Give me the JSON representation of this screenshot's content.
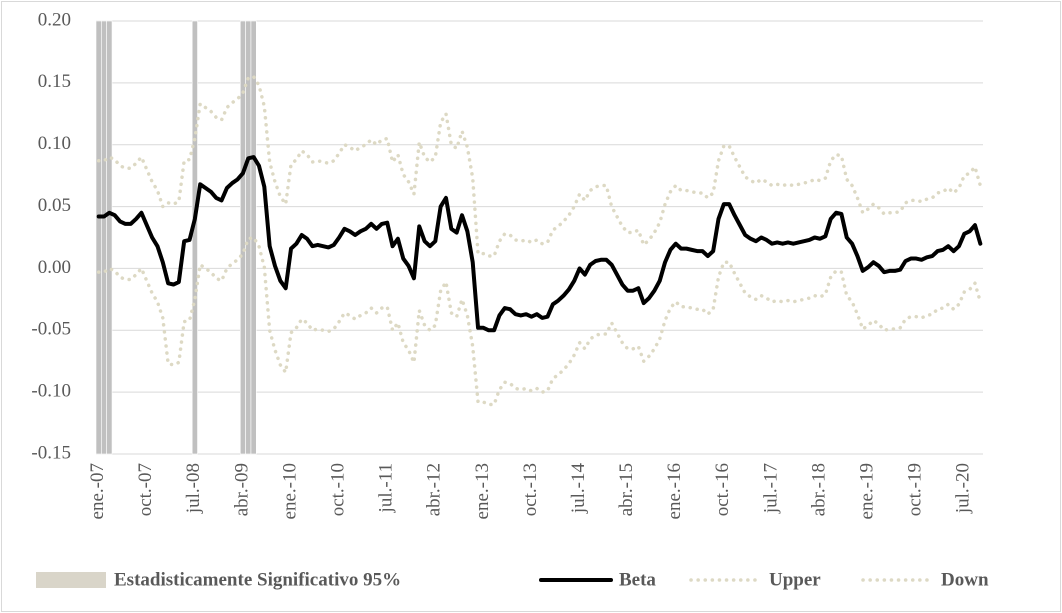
{
  "chart_data": {
    "type": "line",
    "categories": [
      "ene.-07",
      null,
      null,
      null,
      null,
      null,
      null,
      null,
      null,
      "oct.-07",
      null,
      null,
      null,
      null,
      null,
      null,
      null,
      null,
      "jul.-08",
      null,
      null,
      null,
      null,
      null,
      null,
      null,
      null,
      "abr.-09",
      null,
      null,
      null,
      null,
      null,
      null,
      null,
      null,
      "ene.-10",
      null,
      null,
      null,
      null,
      null,
      null,
      null,
      null,
      "oct.-10",
      null,
      null,
      null,
      null,
      null,
      null,
      null,
      null,
      "jul.-11",
      null,
      null,
      null,
      null,
      null,
      null,
      null,
      null,
      "abr.-12",
      null,
      null,
      null,
      null,
      null,
      null,
      null,
      null,
      "ene.-13",
      null,
      null,
      null,
      null,
      null,
      null,
      null,
      null,
      "oct.-13",
      null,
      null,
      null,
      null,
      null,
      null,
      null,
      null,
      "jul.-14",
      null,
      null,
      null,
      null,
      null,
      null,
      null,
      null,
      "abr.-15",
      null,
      null,
      null,
      null,
      null,
      null,
      null,
      null,
      "ene.-16",
      null,
      null,
      null,
      null,
      null,
      null,
      null,
      null,
      "oct.-16",
      null,
      null,
      null,
      null,
      null,
      null,
      null,
      null,
      "jul.-17",
      null,
      null,
      null,
      null,
      null,
      null,
      null,
      null,
      "abr.-18",
      null,
      null,
      null,
      null,
      null,
      null,
      null,
      null,
      "ene.-19",
      null,
      null,
      null,
      null,
      null,
      null,
      null,
      null,
      "oct.-19",
      null,
      null,
      null,
      null,
      null,
      null,
      null,
      null,
      "jul.-20",
      null,
      null,
      null
    ],
    "series": [
      {
        "name": "Estadisticamente Significativo 95%",
        "type": "bar",
        "axis": "y2",
        "color": "#c0c0c0",
        "legend_color": "#d9d5c9",
        "values": [
          1,
          1,
          1,
          null,
          null,
          null,
          null,
          null,
          null,
          null,
          null,
          null,
          null,
          null,
          null,
          null,
          null,
          null,
          1,
          null,
          null,
          null,
          null,
          null,
          null,
          null,
          null,
          1,
          1,
          1,
          null,
          null,
          null,
          null,
          null,
          null,
          null,
          null,
          null,
          null,
          null,
          null,
          null,
          null,
          null,
          null,
          null,
          null,
          null,
          null,
          null,
          null,
          null,
          null,
          null,
          null,
          null,
          null,
          null,
          null,
          null,
          null,
          null,
          null,
          null,
          null,
          null,
          null,
          null,
          null,
          null,
          null,
          null,
          null,
          null,
          null,
          null,
          null,
          null,
          null,
          null,
          null,
          null,
          null,
          null,
          null,
          null,
          null,
          null,
          null,
          null,
          null,
          null,
          null,
          null,
          null,
          null,
          null,
          null,
          null,
          null,
          null,
          null,
          null,
          null,
          null,
          null,
          null,
          null,
          null,
          null,
          null,
          null,
          null,
          null,
          null,
          null,
          null,
          null,
          null,
          null,
          null,
          null,
          null,
          null,
          null,
          null,
          null,
          null,
          null,
          null,
          null,
          null,
          null,
          null,
          null,
          null,
          null,
          null,
          null,
          null,
          null,
          null,
          null,
          null,
          null,
          null,
          null,
          null,
          null,
          null,
          null,
          null,
          null,
          null,
          null,
          null,
          null,
          null,
          null,
          null,
          null,
          null,
          null,
          null,
          null
        ]
      },
      {
        "name": "Beta",
        "type": "line",
        "color": "#000000",
        "style": "solid",
        "values": [
          0.042,
          0.042,
          0.045,
          0.043,
          0.038,
          0.036,
          0.036,
          0.04,
          0.045,
          0.035,
          0.025,
          0.018,
          0.005,
          -0.012,
          -0.013,
          -0.011,
          0.022,
          0.023,
          0.04,
          0.068,
          0.065,
          0.062,
          0.057,
          0.055,
          0.065,
          0.069,
          0.072,
          0.077,
          0.089,
          0.09,
          0.083,
          0.066,
          0.018,
          0.002,
          -0.01,
          -0.016,
          0.016,
          0.02,
          0.027,
          0.024,
          0.018,
          0.019,
          0.018,
          0.017,
          0.019,
          0.025,
          0.032,
          0.03,
          0.027,
          0.03,
          0.032,
          0.036,
          0.032,
          0.036,
          0.037,
          0.018,
          0.024,
          0.008,
          0.002,
          -0.008,
          0.034,
          0.022,
          0.018,
          0.022,
          0.05,
          0.057,
          0.032,
          0.029,
          0.043,
          0.03,
          0.005,
          -0.048,
          -0.048,
          -0.05,
          -0.05,
          -0.038,
          -0.032,
          -0.033,
          -0.037,
          -0.038,
          -0.037,
          -0.039,
          -0.037,
          -0.04,
          -0.039,
          -0.029,
          -0.026,
          -0.022,
          -0.017,
          -0.01,
          0.0,
          -0.005,
          0.003,
          0.006,
          0.007,
          0.007,
          0.003,
          -0.005,
          -0.013,
          -0.018,
          -0.018,
          -0.016,
          -0.028,
          -0.024,
          -0.018,
          -0.01,
          0.005,
          0.015,
          0.02,
          0.016,
          0.016,
          0.015,
          0.014,
          0.014,
          0.01,
          0.014,
          0.04,
          0.052,
          0.052,
          0.043,
          0.035,
          0.027,
          0.024,
          0.022,
          0.025,
          0.023,
          0.02,
          0.021,
          0.02,
          0.021,
          0.02,
          0.021,
          0.022,
          0.023,
          0.025,
          0.024,
          0.026,
          0.04,
          0.045,
          0.044,
          0.025,
          0.02,
          0.01,
          -0.002,
          0.001,
          0.005,
          0.002,
          -0.003,
          -0.002,
          -0.002,
          -0.001,
          0.006,
          0.008,
          0.008,
          0.007,
          0.009,
          0.01,
          0.014,
          0.015,
          0.018,
          0.014,
          0.018,
          0.028,
          0.03,
          0.035,
          0.02
        ]
      },
      {
        "name": "Upper",
        "type": "line",
        "color": "#ddd9c4",
        "style": "dotted",
        "values": [
          0.087,
          0.087,
          0.09,
          0.088,
          0.083,
          0.081,
          0.081,
          0.085,
          0.09,
          0.08,
          0.07,
          0.063,
          0.05,
          0.053,
          0.052,
          0.054,
          0.087,
          0.088,
          0.105,
          0.133,
          0.13,
          0.127,
          0.122,
          0.12,
          0.13,
          0.134,
          0.137,
          0.142,
          0.154,
          0.155,
          0.148,
          0.131,
          0.086,
          0.07,
          0.058,
          0.052,
          0.084,
          0.088,
          0.095,
          0.092,
          0.086,
          0.087,
          0.086,
          0.085,
          0.087,
          0.093,
          0.1,
          0.098,
          0.095,
          0.098,
          0.1,
          0.104,
          0.1,
          0.104,
          0.105,
          0.086,
          0.092,
          0.076,
          0.07,
          0.06,
          0.102,
          0.09,
          0.086,
          0.09,
          0.118,
          0.125,
          0.1,
          0.097,
          0.111,
          0.098,
          0.073,
          0.012,
          0.012,
          0.01,
          0.01,
          0.022,
          0.028,
          0.027,
          0.023,
          0.022,
          0.023,
          0.021,
          0.023,
          0.02,
          0.021,
          0.031,
          0.034,
          0.038,
          0.043,
          0.05,
          0.06,
          0.055,
          0.063,
          0.066,
          0.067,
          0.067,
          0.05,
          0.042,
          0.034,
          0.029,
          0.029,
          0.031,
          0.019,
          0.023,
          0.029,
          0.037,
          0.052,
          0.062,
          0.067,
          0.063,
          0.063,
          0.062,
          0.061,
          0.061,
          0.057,
          0.061,
          0.087,
          0.099,
          0.099,
          0.09,
          0.082,
          0.074,
          0.071,
          0.069,
          0.072,
          0.07,
          0.067,
          0.068,
          0.067,
          0.068,
          0.067,
          0.068,
          0.069,
          0.07,
          0.072,
          0.071,
          0.073,
          0.087,
          0.092,
          0.091,
          0.072,
          0.067,
          0.057,
          0.045,
          0.048,
          0.052,
          0.049,
          0.044,
          0.045,
          0.045,
          0.046,
          0.053,
          0.055,
          0.055,
          0.054,
          0.056,
          0.057,
          0.061,
          0.062,
          0.065,
          0.061,
          0.065,
          0.075,
          0.077,
          0.082,
          0.067
        ]
      },
      {
        "name": "Down",
        "type": "line",
        "color": "#ddd9c4",
        "style": "dotted",
        "values": [
          -0.003,
          -0.003,
          0.0,
          -0.002,
          -0.007,
          -0.009,
          -0.009,
          -0.005,
          0.0,
          -0.01,
          -0.02,
          -0.027,
          -0.04,
          -0.077,
          -0.078,
          -0.076,
          -0.043,
          -0.042,
          -0.025,
          0.003,
          0.0,
          -0.003,
          -0.008,
          -0.01,
          0.0,
          0.004,
          0.007,
          0.012,
          0.024,
          0.025,
          0.018,
          0.001,
          -0.05,
          -0.066,
          -0.078,
          -0.084,
          -0.052,
          -0.048,
          -0.041,
          -0.044,
          -0.05,
          -0.049,
          -0.05,
          -0.051,
          -0.049,
          -0.043,
          -0.036,
          -0.038,
          -0.041,
          -0.038,
          -0.036,
          -0.032,
          -0.036,
          -0.032,
          -0.031,
          -0.05,
          -0.044,
          -0.06,
          -0.066,
          -0.076,
          -0.034,
          -0.046,
          -0.05,
          -0.046,
          -0.018,
          -0.011,
          -0.036,
          -0.039,
          -0.025,
          -0.038,
          -0.063,
          -0.108,
          -0.108,
          -0.11,
          -0.11,
          -0.098,
          -0.092,
          -0.093,
          -0.097,
          -0.098,
          -0.097,
          -0.099,
          -0.097,
          -0.1,
          -0.099,
          -0.089,
          -0.086,
          -0.082,
          -0.077,
          -0.07,
          -0.06,
          -0.065,
          -0.057,
          -0.054,
          -0.053,
          -0.053,
          -0.044,
          -0.052,
          -0.06,
          -0.065,
          -0.065,
          -0.063,
          -0.075,
          -0.071,
          -0.065,
          -0.057,
          -0.042,
          -0.032,
          -0.027,
          -0.031,
          -0.031,
          -0.032,
          -0.033,
          -0.033,
          -0.037,
          -0.033,
          -0.007,
          0.005,
          0.005,
          -0.004,
          -0.012,
          -0.02,
          -0.023,
          -0.025,
          -0.022,
          -0.024,
          -0.027,
          -0.026,
          -0.027,
          -0.026,
          -0.027,
          -0.026,
          -0.025,
          -0.024,
          -0.022,
          -0.023,
          -0.021,
          -0.007,
          -0.002,
          -0.003,
          -0.022,
          -0.027,
          -0.037,
          -0.049,
          -0.046,
          -0.042,
          -0.045,
          -0.05,
          -0.049,
          -0.049,
          -0.048,
          -0.041,
          -0.039,
          -0.039,
          -0.04,
          -0.038,
          -0.037,
          -0.033,
          -0.032,
          -0.029,
          -0.033,
          -0.029,
          -0.019,
          -0.017,
          -0.012,
          -0.027
        ]
      }
    ],
    "ylim": [
      -0.15,
      0.2
    ],
    "yticks": [
      {
        "value": -0.15,
        "label": "-0.15"
      },
      {
        "value": -0.1,
        "label": "-0.10"
      },
      {
        "value": -0.05,
        "label": "-0.05"
      },
      {
        "value": 0,
        "label": "0.00"
      },
      {
        "value": 0.05,
        "label": "0.05"
      },
      {
        "value": 0.1,
        "label": "0.10"
      },
      {
        "value": 0.15,
        "label": "0.15"
      },
      {
        "value": 0.2,
        "label": "0.20"
      }
    ],
    "y2lim": [
      0,
      1
    ],
    "grid": true,
    "grid_color": "#d9d9d9",
    "legend": "bottom"
  }
}
